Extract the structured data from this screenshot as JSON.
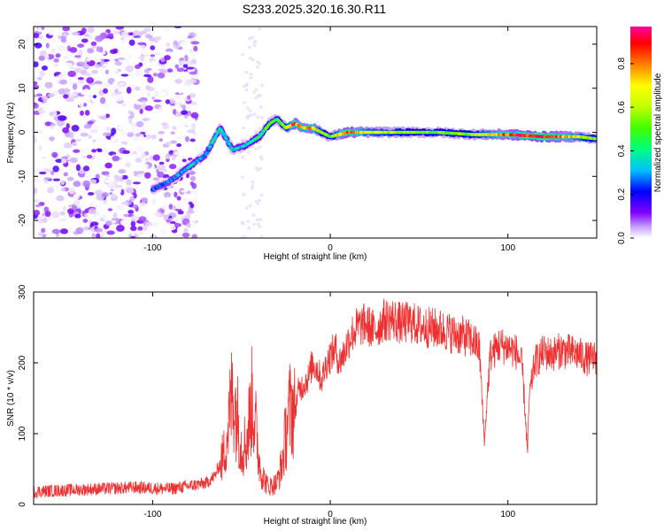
{
  "title": "S233.2025.320.16.30.R11",
  "chart_data": [
    {
      "type": "heatmap",
      "title": "S233.2025.320.16.30.R11",
      "xlabel": "Height of straight line (km)",
      "ylabel": "Frequency (Hz)",
      "xlim": [
        -167,
        150
      ],
      "ylim": [
        -24,
        24
      ],
      "x_ticks": [
        -100,
        0,
        100
      ],
      "y_ticks": [
        -20,
        -10,
        0,
        10,
        20
      ],
      "grid": false,
      "colorbar": {
        "label": "Normalized spectral amplitude",
        "range": [
          0,
          0.97
        ],
        "ticks": [
          0.0,
          0.2,
          0.4,
          0.6,
          0.8
        ],
        "colors": [
          "#ffffff",
          "#c8a6ff",
          "#8000ff",
          "#0000ff",
          "#00c0ff",
          "#00ff80",
          "#40ff00",
          "#c0ff00",
          "#ffff00",
          "#ff8000",
          "#ff0000",
          "#ff00a0"
        ]
      },
      "ridge": {
        "name": "dominant frequency ridge",
        "x": [
          -100,
          -90,
          -80,
          -70,
          -62,
          -55,
          -48,
          -40,
          -34,
          -30,
          -25,
          -20,
          -15,
          -10,
          -5,
          0,
          10,
          20,
          40,
          60,
          80,
          100,
          120,
          140,
          150
        ],
        "y": [
          -13,
          -11,
          -8,
          -5,
          1,
          -4,
          -3,
          -1,
          2,
          3,
          1,
          2,
          1,
          1,
          0,
          -1,
          0,
          0,
          0,
          0,
          -0.5,
          -0.5,
          -1,
          -1,
          -1.5
        ],
        "amplitude": [
          0.3,
          0.35,
          0.4,
          0.35,
          0.45,
          0.4,
          0.4,
          0.45,
          0.55,
          0.5,
          0.6,
          0.9,
          0.75,
          0.85,
          0.6,
          0.55,
          0.95,
          0.7,
          0.6,
          0.55,
          0.6,
          0.85,
          0.97,
          0.7,
          0.55
        ]
      },
      "noise_region_km": [
        -167,
        -75
      ]
    },
    {
      "type": "line",
      "xlabel": "Height of straight line (km)",
      "ylabel": "SNR (10 * v/v)",
      "xlim": [
        -167,
        150
      ],
      "ylim": [
        0,
        300
      ],
      "x_ticks": [
        -100,
        0,
        100
      ],
      "y_ticks": [
        0,
        100,
        200,
        300
      ],
      "grid": false,
      "color": "#f03030",
      "series": [
        {
          "x": [
            -167,
            -150,
            -130,
            -110,
            -90,
            -80,
            -70,
            -65,
            -60,
            -58,
            -55,
            -52,
            -50,
            -47,
            -44,
            -42,
            -40,
            -38,
            -35,
            -30,
            -27,
            -24,
            -22,
            -20,
            -18,
            -15,
            -12,
            -10,
            -7,
            -5,
            -2,
            0,
            3,
            5,
            8,
            10,
            12,
            15,
            20,
            25,
            30,
            35,
            40,
            45,
            50,
            55,
            60,
            65,
            70,
            75,
            80,
            84,
            86,
            87,
            88,
            90,
            95,
            100,
            105,
            108,
            110,
            111,
            112,
            115,
            120,
            125,
            130,
            135,
            140,
            145,
            150
          ],
          "y": [
            18,
            20,
            22,
            24,
            22,
            26,
            30,
            40,
            70,
            100,
            160,
            120,
            80,
            90,
            150,
            110,
            60,
            40,
            25,
            30,
            60,
            120,
            140,
            130,
            160,
            170,
            180,
            200,
            190,
            175,
            200,
            210,
            220,
            200,
            215,
            230,
            240,
            250,
            255,
            245,
            260,
            262,
            255,
            258,
            252,
            250,
            248,
            245,
            240,
            238,
            232,
            220,
            120,
            90,
            140,
            210,
            225,
            222,
            215,
            195,
            120,
            70,
            150,
            200,
            215,
            212,
            218,
            215,
            212,
            205,
            208
          ]
        }
      ]
    }
  ]
}
